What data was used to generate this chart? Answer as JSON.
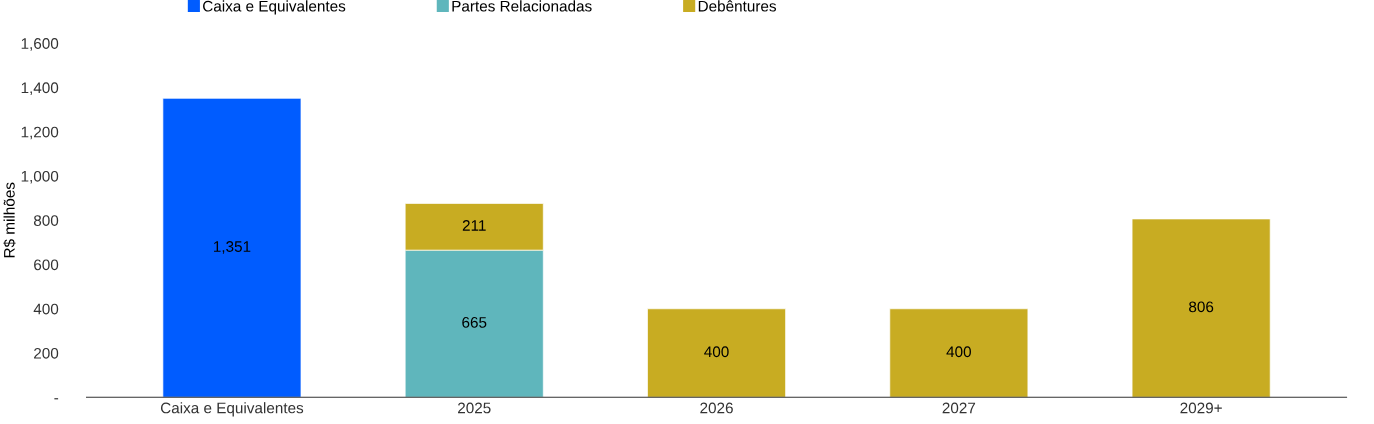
{
  "chart_data": {
    "type": "bar",
    "stacked": true,
    "ylabel": "R$ milhões",
    "categories": [
      "Caixa e Equivalentes",
      "2025",
      "2026",
      "2027",
      "2029+"
    ],
    "series": [
      {
        "name": "Caixa e Equivalentes",
        "color": "#005cff",
        "values": [
          1351,
          null,
          null,
          null,
          null
        ],
        "value_labels": [
          "1,351",
          null,
          null,
          null,
          null
        ]
      },
      {
        "name": "Partes Relacionadas",
        "color": "#5fb6bc",
        "values": [
          null,
          665,
          null,
          null,
          null
        ],
        "value_labels": [
          null,
          "665",
          null,
          null,
          null
        ]
      },
      {
        "name": "Debêntures",
        "color": "#c8ac22",
        "values": [
          null,
          211,
          400,
          400,
          806
        ],
        "value_labels": [
          null,
          "211",
          "400",
          "400",
          "806"
        ]
      }
    ],
    "ylim": [
      0,
      1600
    ],
    "yticks": [
      {
        "value": 0,
        "label": "-"
      },
      200,
      400,
      600,
      800,
      {
        "value": 1000,
        "label": "1,000"
      },
      {
        "value": 1200,
        "label": "1,200"
      },
      {
        "value": 1400,
        "label": "1,400"
      },
      {
        "value": 1600,
        "label": "1,600"
      }
    ],
    "grid": false,
    "legend": "top"
  }
}
